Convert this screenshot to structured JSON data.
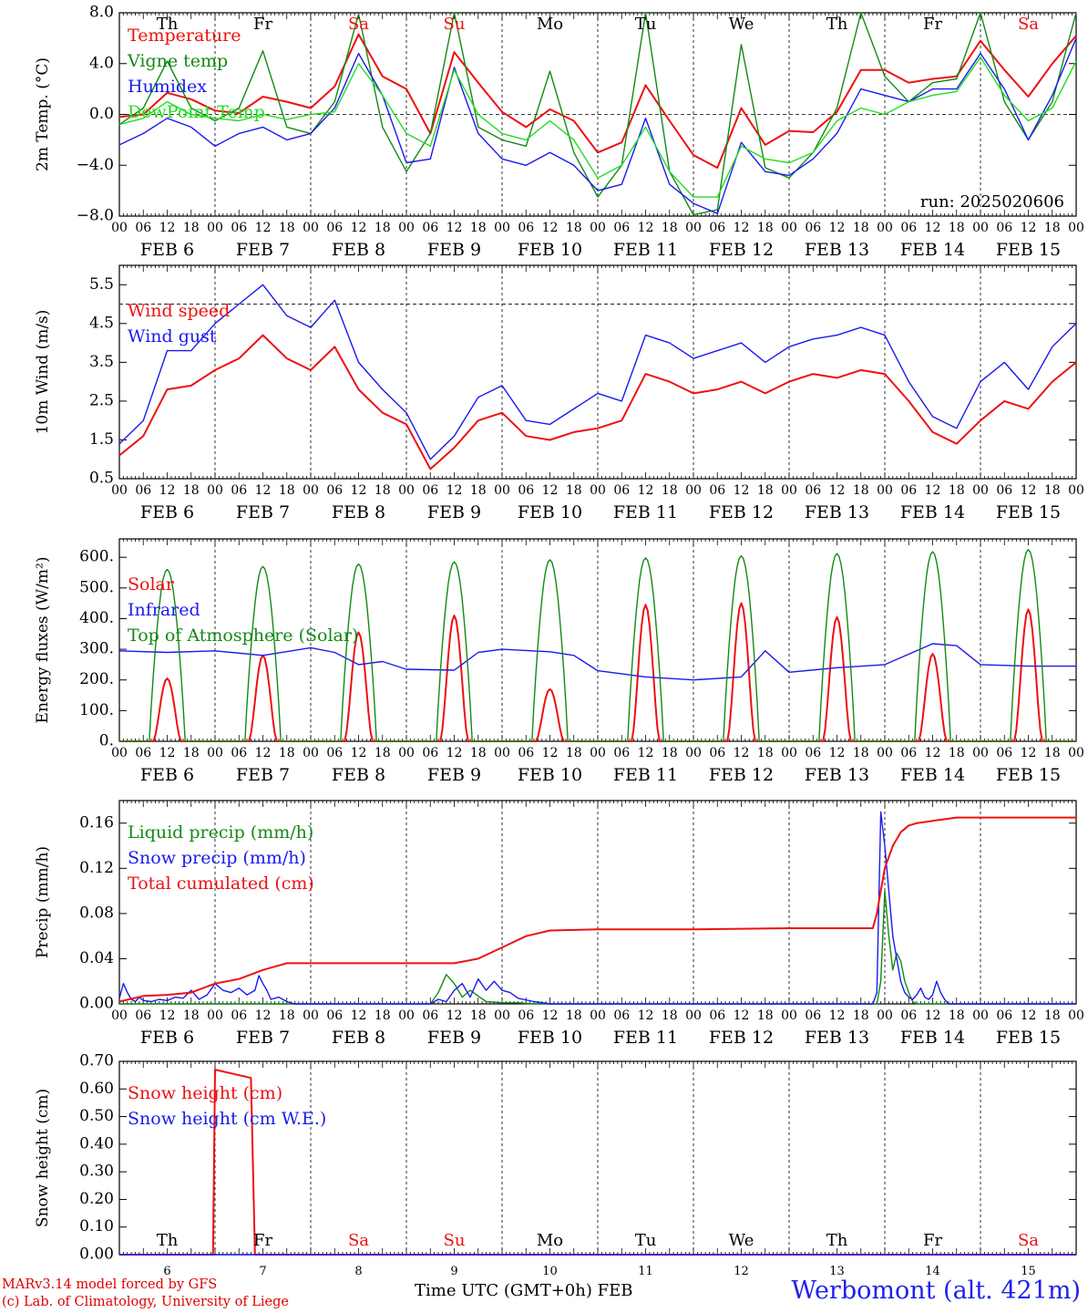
{
  "days": [
    "6",
    "7",
    "8",
    "9",
    "10",
    "11",
    "12",
    "13",
    "14",
    "15"
  ],
  "weekdays": [
    "Th",
    "Fr",
    "Sa",
    "Su",
    "Mo",
    "Tu",
    "We",
    "Th",
    "Fr",
    "Sa"
  ],
  "weekend_flags": [
    false,
    false,
    true,
    true,
    false,
    false,
    false,
    false,
    false,
    true
  ],
  "month_label": "FEB",
  "hour_labels": [
    "00",
    "06",
    "12",
    "18"
  ],
  "colors": {
    "red": "#ee1010",
    "green": "#138a13",
    "blue": "#1a1aee",
    "lightgreen": "#22dd22",
    "station": "#2020ee",
    "credit": "#e00000"
  },
  "footer": {
    "credit_line1": "MARv3.14 model forced by GFS",
    "credit_line2": "(c) Lab. of Climatology, University of Liege",
    "axis_title": "Time UTC (GMT+0h)",
    "axis_month": "FEB",
    "station": "Werbomont (alt. 421m)"
  },
  "chart_data": [
    {
      "id": "temp",
      "type": "line",
      "ylabel": "2m Temp. (°C)",
      "ylim": [
        -8,
        8
      ],
      "yticks": [
        -8,
        -4,
        0,
        4,
        8
      ],
      "ytick_labels": [
        "−8.0",
        "−4.0",
        "0.0",
        "4.0",
        "8.0"
      ],
      "ref_line": 0,
      "run_label": "run: 2025020606",
      "x": [
        0,
        6,
        12,
        18,
        24,
        30,
        36,
        42,
        48,
        54,
        60,
        66,
        72,
        78,
        84,
        90,
        96,
        102,
        108,
        114,
        120,
        126,
        132,
        138,
        144,
        150,
        156,
        162,
        168,
        174,
        180,
        186,
        192,
        198,
        204,
        210,
        216,
        222,
        228,
        234,
        240
      ],
      "series": [
        {
          "name": "Temperature",
          "color": "red",
          "values": [
            -0.2,
            0.0,
            1.7,
            1.2,
            0.3,
            0.1,
            1.4,
            1.0,
            0.5,
            2.2,
            6.3,
            3.0,
            2.0,
            -1.5,
            4.9,
            2.5,
            0.2,
            -1.0,
            0.4,
            -0.5,
            -3.0,
            -2.2,
            2.3,
            -0.5,
            -3.2,
            -4.2,
            0.5,
            -2.4,
            -1.3,
            -1.4,
            0.2,
            3.5,
            3.5,
            2.5,
            2.8,
            3.0,
            5.8,
            3.5,
            1.4,
            4.0,
            6.2
          ]
        },
        {
          "name": "Vigne temp",
          "color": "green",
          "values": [
            -0.8,
            0.5,
            4.2,
            0.5,
            -0.5,
            0.5,
            5.0,
            -1.0,
            -1.5,
            1.0,
            7.9,
            -1.0,
            -4.5,
            -1.5,
            8.0,
            -1.0,
            -2.0,
            -2.5,
            3.4,
            -3.0,
            -6.5,
            -4.0,
            8.0,
            -4.5,
            -7.9,
            -7.5,
            5.5,
            -4.2,
            -5.0,
            -3.0,
            0.5,
            8.0,
            3.0,
            1.0,
            2.5,
            2.8,
            8.0,
            1.0,
            -2.0,
            1.0,
            8.0
          ]
        },
        {
          "name": "Humidex",
          "color": "blue",
          "values": [
            -2.4,
            -1.5,
            -0.3,
            -1.0,
            -2.5,
            -1.5,
            -1.0,
            -2.0,
            -1.5,
            0.5,
            4.8,
            1.5,
            -3.8,
            -3.5,
            3.7,
            -1.5,
            -3.5,
            -4.0,
            -3.0,
            -4.0,
            -6.0,
            -5.5,
            -0.3,
            -5.5,
            -7.0,
            -7.8,
            -2.2,
            -4.5,
            -4.8,
            -3.5,
            -1.5,
            2.0,
            1.5,
            1.0,
            2.0,
            2.0,
            4.8,
            2.0,
            -2.0,
            1.5,
            6.0
          ]
        },
        {
          "name": "DewPoint Temp",
          "color": "lightgreen",
          "values": [
            -0.8,
            -0.3,
            1.0,
            0.0,
            -0.3,
            -0.5,
            0.0,
            -0.4,
            0.0,
            0.2,
            4.0,
            1.5,
            -1.5,
            -2.5,
            3.5,
            0.0,
            -1.5,
            -2.0,
            -0.5,
            -2.0,
            -5.0,
            -4.0,
            -1.0,
            -4.5,
            -6.5,
            -6.5,
            -2.5,
            -3.5,
            -3.8,
            -3.0,
            -0.5,
            0.5,
            0.0,
            1.0,
            1.5,
            1.8,
            4.5,
            1.5,
            -0.5,
            0.5,
            4.2
          ]
        }
      ]
    },
    {
      "id": "wind",
      "type": "line",
      "ylabel": "10m Wind (m/s)",
      "ylim": [
        0.5,
        6.0
      ],
      "yticks": [
        0.5,
        1.5,
        2.5,
        3.5,
        4.5,
        5.5
      ],
      "ytick_labels": [
        "0.5",
        "1.5",
        "2.5",
        "3.5",
        "4.5",
        "5.5"
      ],
      "ref_line": 5.0,
      "x": [
        0,
        6,
        12,
        18,
        24,
        30,
        36,
        42,
        48,
        54,
        60,
        66,
        72,
        78,
        84,
        90,
        96,
        102,
        108,
        114,
        120,
        126,
        132,
        138,
        144,
        150,
        156,
        162,
        168,
        174,
        180,
        186,
        192,
        198,
        204,
        210,
        216,
        222,
        228,
        234,
        240
      ],
      "series": [
        {
          "name": "Wind speed",
          "color": "red",
          "values": [
            1.1,
            1.6,
            2.8,
            2.9,
            3.3,
            3.6,
            4.2,
            3.6,
            3.3,
            3.9,
            2.8,
            2.2,
            1.9,
            0.75,
            1.3,
            2.0,
            2.2,
            1.6,
            1.5,
            1.7,
            1.8,
            2.0,
            3.2,
            3.0,
            2.7,
            2.8,
            3.0,
            2.7,
            3.0,
            3.2,
            3.1,
            3.3,
            3.2,
            2.5,
            1.7,
            1.4,
            2.0,
            2.5,
            2.3,
            3.0,
            3.5
          ]
        },
        {
          "name": "Wind gust",
          "color": "blue",
          "values": [
            1.4,
            2.0,
            3.8,
            3.8,
            4.5,
            5.0,
            5.5,
            4.7,
            4.4,
            5.1,
            3.5,
            2.8,
            2.2,
            1.0,
            1.6,
            2.6,
            2.9,
            2.0,
            1.9,
            2.3,
            2.7,
            2.5,
            4.2,
            4.0,
            3.6,
            3.8,
            4.0,
            3.5,
            3.9,
            4.1,
            4.2,
            4.4,
            4.2,
            3.0,
            2.1,
            1.8,
            3.0,
            3.5,
            2.8,
            3.9,
            4.5
          ]
        }
      ]
    },
    {
      "id": "flux",
      "type": "line",
      "ylabel": "Energy fluxes (W/m²)",
      "ylim": [
        0,
        660
      ],
      "yticks": [
        0,
        100,
        200,
        300,
        400,
        500,
        600
      ],
      "ytick_labels": [
        "0.",
        "100.",
        "200.",
        "300.",
        "400.",
        "500.",
        "600."
      ],
      "series": [
        {
          "name": "Solar",
          "color": "red",
          "daily_peak": [
            205,
            280,
            355,
            410,
            170,
            445,
            450,
            405,
            285,
            430
          ]
        },
        {
          "name": "Infrared",
          "color": "blue",
          "x": [
            0,
            12,
            24,
            36,
            48,
            54,
            60,
            66,
            72,
            84,
            90,
            96,
            108,
            114,
            120,
            132,
            144,
            156,
            162,
            168,
            180,
            192,
            204,
            210,
            216,
            228,
            240
          ],
          "values": [
            295,
            290,
            295,
            280,
            305,
            290,
            250,
            260,
            235,
            232,
            290,
            300,
            292,
            280,
            230,
            210,
            200,
            210,
            295,
            225,
            240,
            250,
            318,
            312,
            250,
            245,
            245
          ]
        },
        {
          "name": "Top of Atmosphere (Solar)",
          "color": "green",
          "daily_peak": [
            560,
            570,
            578,
            585,
            592,
            598,
            605,
            612,
            618,
            625
          ]
        }
      ]
    },
    {
      "id": "precip",
      "type": "line",
      "ylabel": "Precip (mm/h)",
      "ylim": [
        0,
        0.18
      ],
      "yticks": [
        0,
        0.04,
        0.08,
        0.12,
        0.16
      ],
      "ytick_labels": [
        "0.00",
        "0.04",
        "0.08",
        "0.12",
        "0.16"
      ],
      "series": [
        {
          "name": "Liquid precip (mm/h)",
          "color": "green",
          "x": [
            0,
            78,
            80,
            82,
            84,
            86,
            88,
            92,
            96,
            100,
            104,
            108,
            190,
            191,
            192,
            193,
            194,
            195,
            196,
            197,
            198,
            199,
            200,
            240
          ],
          "values": [
            0,
            0,
            0.01,
            0.026,
            0.018,
            0.006,
            0.012,
            0.002,
            0.001,
            0.001,
            0,
            0,
            0,
            0.02,
            0.1,
            0.06,
            0.03,
            0.045,
            0.038,
            0.02,
            0.01,
            0.002,
            0,
            0
          ]
        },
        {
          "name": "Snow precip (mm/h)",
          "color": "blue",
          "x": [
            0,
            1,
            2,
            3,
            4,
            5,
            6,
            8,
            10,
            12,
            14,
            16,
            18,
            20,
            22,
            24,
            26,
            28,
            30,
            32,
            34,
            35,
            36,
            37,
            38,
            40,
            42,
            44,
            78,
            80,
            82,
            84,
            86,
            88,
            90,
            92,
            94,
            96,
            98,
            100,
            104,
            108,
            189,
            190,
            191,
            192,
            193,
            194,
            195,
            196,
            197,
            198,
            199,
            200,
            201,
            202,
            203,
            204,
            205,
            206,
            207,
            208,
            240
          ],
          "values": [
            0.005,
            0.018,
            0.01,
            0.004,
            0.002,
            0.006,
            0.003,
            0.002,
            0.004,
            0.003,
            0.006,
            0.005,
            0.012,
            0.004,
            0.008,
            0.018,
            0.012,
            0.01,
            0.014,
            0.008,
            0.012,
            0.025,
            0.018,
            0.012,
            0.004,
            0.006,
            0.002,
            0,
            0,
            0.004,
            0.002,
            0.012,
            0.018,
            0.006,
            0.022,
            0.012,
            0.02,
            0.012,
            0.01,
            0.005,
            0.002,
            0,
            0,
            0.01,
            0.17,
            0.14,
            0.1,
            0.06,
            0.04,
            0.02,
            0.01,
            0.006,
            0.004,
            0.008,
            0.014,
            0.006,
            0.004,
            0.008,
            0.02,
            0.01,
            0.004,
            0,
            0
          ]
        },
        {
          "name": "Total cumulated (cm)",
          "color": "red",
          "x": [
            0,
            6,
            12,
            18,
            24,
            30,
            36,
            42,
            48,
            60,
            72,
            84,
            90,
            96,
            102,
            108,
            120,
            144,
            168,
            186,
            189,
            190,
            191,
            192,
            194,
            196,
            198,
            200,
            204,
            210,
            216,
            228,
            240
          ],
          "values": [
            0.002,
            0.007,
            0.008,
            0.01,
            0.018,
            0.022,
            0.03,
            0.036,
            0.036,
            0.036,
            0.036,
            0.036,
            0.04,
            0.05,
            0.06,
            0.065,
            0.066,
            0.066,
            0.067,
            0.067,
            0.067,
            0.08,
            0.1,
            0.12,
            0.14,
            0.152,
            0.158,
            0.16,
            0.162,
            0.165,
            0.165,
            0.165,
            0.165
          ]
        }
      ]
    },
    {
      "id": "snow",
      "type": "line",
      "ylabel": "Snow height (cm)",
      "ylim": [
        0,
        0.7
      ],
      "yticks": [
        0,
        0.1,
        0.2,
        0.3,
        0.4,
        0.5,
        0.6,
        0.7
      ],
      "ytick_labels": [
        "0.00",
        "0.10",
        "0.20",
        "0.30",
        "0.40",
        "0.50",
        "0.60",
        "0.70"
      ],
      "series": [
        {
          "name": "Snow height (cm)",
          "color": "red",
          "x": [
            0,
            23.5,
            24,
            33,
            34,
            240
          ],
          "values": [
            0,
            0,
            0.67,
            0.64,
            0,
            0
          ]
        },
        {
          "name": "Snow height (cm W.E.)",
          "color": "blue",
          "x": [
            0,
            240
          ],
          "values": [
            0,
            0
          ]
        }
      ]
    }
  ]
}
